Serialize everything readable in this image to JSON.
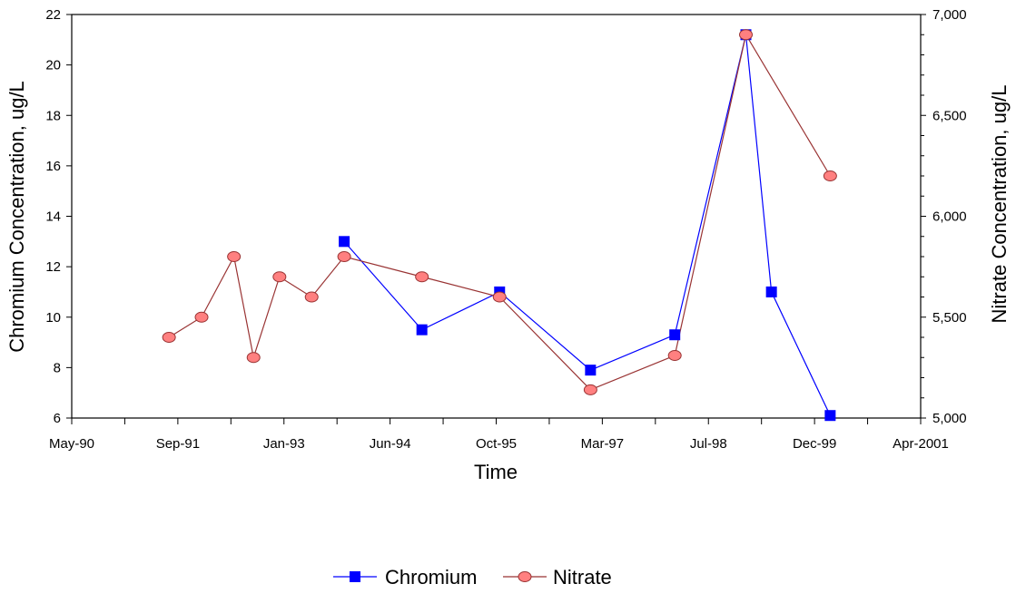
{
  "chart_data": {
    "type": "line",
    "xlabel": "Time",
    "ylabel": "Chromium Concentration, ug/L",
    "y2label": "Nitrate Concentration, ug/L",
    "x_ticks": [
      "May-90",
      "Sep-91",
      "Jan-93",
      "Jun-94",
      "Oct-95",
      "Mar-97",
      "Jul-98",
      "Dec-99",
      "Apr-2001"
    ],
    "ylim": [
      6,
      22
    ],
    "y_ticks": [
      "6",
      "8",
      "10",
      "12",
      "14",
      "16",
      "18",
      "20",
      "22"
    ],
    "y2lim": [
      5000,
      7000
    ],
    "y2_ticks": [
      "5,000",
      "5,500",
      "6,000",
      "6,500",
      "7,000"
    ],
    "grid": false,
    "legend_position": "bottom-center",
    "series": [
      {
        "name": "Chromium",
        "axis": "left",
        "color": "#0000ff",
        "marker": "square",
        "points": [
          {
            "x": "1993-11-01",
            "y": 13.0
          },
          {
            "x": "1994-11-01",
            "y": 9.5
          },
          {
            "x": "1995-11-01",
            "y": 11.0
          },
          {
            "x": "1997-01-01",
            "y": 7.9
          },
          {
            "x": "1998-02-01",
            "y": 9.3
          },
          {
            "x": "1999-01-01",
            "y": 21.2
          },
          {
            "x": "1999-05-01",
            "y": 11.0
          },
          {
            "x": "2000-02-01",
            "y": 6.1
          }
        ]
      },
      {
        "name": "Nitrate",
        "axis": "right",
        "color": "#993333",
        "marker_fill": "#ff8080",
        "marker": "circle",
        "points": [
          {
            "x": "1991-08-01",
            "y": 5400
          },
          {
            "x": "1992-01-01",
            "y": 5500
          },
          {
            "x": "1992-06-01",
            "y": 5800
          },
          {
            "x": "1992-09-01",
            "y": 5300
          },
          {
            "x": "1993-01-01",
            "y": 5700
          },
          {
            "x": "1993-06-01",
            "y": 5600
          },
          {
            "x": "1993-11-01",
            "y": 5800
          },
          {
            "x": "1994-11-01",
            "y": 5700
          },
          {
            "x": "1995-11-01",
            "y": 5600
          },
          {
            "x": "1997-01-01",
            "y": 5140
          },
          {
            "x": "1998-02-01",
            "y": 5310
          },
          {
            "x": "1999-01-01",
            "y": 6900
          },
          {
            "x": "2000-02-01",
            "y": 6200
          }
        ]
      }
    ]
  }
}
